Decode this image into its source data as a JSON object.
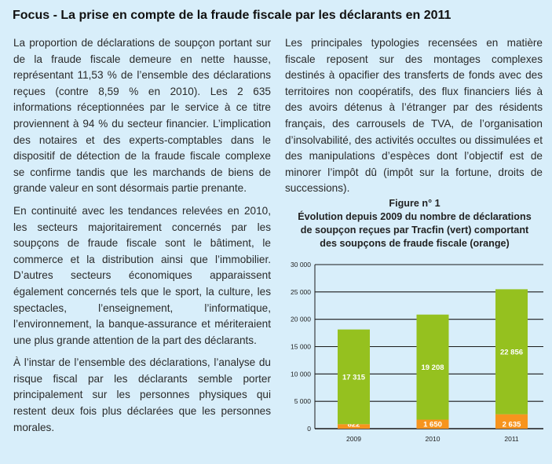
{
  "title": "Focus - La prise en compte de la fraude fiscale par les déclarants en 2011",
  "left_column": [
    "La proportion de déclarations de soupçon portant sur de la fraude fiscale demeure en nette hausse, représentant 11,53 % de l’ensemble des déclarations reçues (contre 8,59 % en 2010). Les 2 635 informations réceptionnées par le service à ce titre proviennent à 94 % du secteur financier. L’implication des notaires et des experts-comptables dans le dispositif de détection de la fraude fiscale complexe se confirme tandis que les marchands de biens de grande valeur en sont désormais partie prenante.",
    "En continuité avec les tendances relevées en 2010, les secteurs majoritairement concernés par les soupçons de fraude fiscale sont le bâtiment, le commerce et la distribution ainsi que l’immobilier. D’autres secteurs économiques apparaissent également concernés tels que le sport, la culture, les spectacles, l’enseignement, l’informatique, l’environnement, la banque-assurance et mériteraient une plus grande attention de la part des déclarants.",
    "À l’instar de l’ensemble des déclarations, l’analyse du risque fiscal par les déclarants semble porter principalement sur les personnes physiques qui restent deux fois plus déclarées que les personnes morales."
  ],
  "right_column": [
    "Les principales typologies recensées en matière fiscale reposent sur des montages complexes destinés à opacifier des transferts de fonds avec des territoires non coopératifs, des flux financiers liés à des avoirs détenus à l’étranger par des résidents français, des carrousels de TVA, de l’organisation d’insolvabilité, des activités occultes ou dissimulées et des manipulations d’espèces dont l’objectif est de minorer l’impôt dû (impôt sur la fortune, droits de successions)."
  ],
  "chart_data": {
    "type": "bar",
    "stacked": true,
    "title": "Figure n° 1",
    "subtitle": [
      "Évolution depuis 2009 du nombre de déclarations",
      "de soupçon reçues par Tracfin (vert) comportant",
      "des soupçons de fraude fiscale (orange)"
    ],
    "categories": [
      "2009",
      "2010",
      "2011"
    ],
    "series": [
      {
        "color": "#f7941d",
        "values": [
          822,
          1650,
          2635
        ],
        "labels": [
          "822",
          "1 650",
          "2 635"
        ]
      },
      {
        "color": "#95c11f",
        "values": [
          17315,
          19208,
          22856
        ],
        "labels": [
          "17 315",
          "19 208",
          "22 856"
        ]
      }
    ],
    "ylim": [
      0,
      30000
    ],
    "yticks": [
      0,
      5000,
      10000,
      15000,
      20000,
      25000,
      30000
    ],
    "ytick_labels": [
      "0",
      "5 000",
      "10 000",
      "15 000",
      "20 000",
      "25 000",
      "30 000"
    ],
    "grid": true
  }
}
